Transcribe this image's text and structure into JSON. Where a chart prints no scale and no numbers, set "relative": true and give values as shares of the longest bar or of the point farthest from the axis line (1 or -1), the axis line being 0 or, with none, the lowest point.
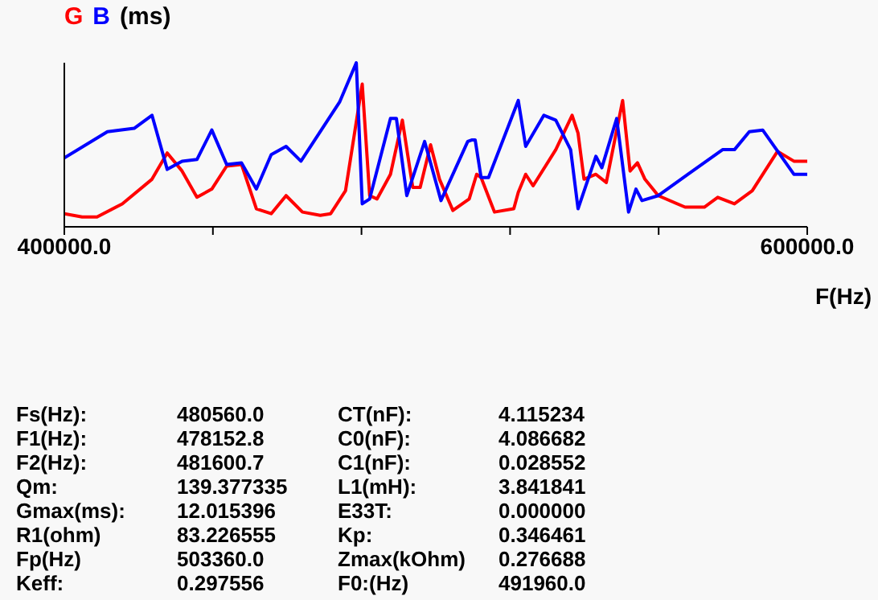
{
  "chart_data": {
    "type": "line",
    "relative": true,
    "xlabel": "F(Hz)",
    "ylabel": "(ms)",
    "legend": "top left",
    "grid": false,
    "marker": "none",
    "line_style": "solid",
    "xlim": [
      400000,
      600000
    ],
    "xticks": [
      {
        "value": 400000,
        "label": "400000.0"
      },
      {
        "value": 440000,
        "label": null
      },
      {
        "value": 480000,
        "label": null
      },
      {
        "value": 520000,
        "label": null
      },
      {
        "value": 560000,
        "label": null
      },
      {
        "value": 600000,
        "label": "600000.0"
      }
    ],
    "series": [
      {
        "name": "G",
        "color": "#ff0000",
        "x": [
          400000,
          404800,
          408800,
          415600,
          423600,
          427700,
          431700,
          435700,
          439700,
          443700,
          447700,
          451700,
          455700,
          459700,
          464100,
          468900,
          471700,
          475700,
          480200,
          482200,
          484200,
          487800,
          491000,
          493800,
          495800,
          498600,
          501000,
          504600,
          509000,
          511000,
          512200,
          515800,
          521000,
          522200,
          524200,
          526200,
          532300,
          536700,
          538300,
          539900,
          543100,
          545900,
          550300,
          552300,
          554300,
          556300,
          559900,
          567100,
          572300,
          575900,
          580400,
          585200,
          592000,
          596400,
          600000
        ],
        "values": [
          0.08,
          0.06,
          0.06,
          0.14,
          0.29,
          0.45,
          0.34,
          0.18,
          0.23,
          0.37,
          0.38,
          0.11,
          0.08,
          0.19,
          0.09,
          0.07,
          0.08,
          0.22,
          0.87,
          0.19,
          0.17,
          0.32,
          0.65,
          0.24,
          0.24,
          0.5,
          0.29,
          0.1,
          0.17,
          0.32,
          0.3,
          0.09,
          0.11,
          0.21,
          0.32,
          0.25,
          0.47,
          0.68,
          0.57,
          0.29,
          0.32,
          0.27,
          0.77,
          0.34,
          0.39,
          0.29,
          0.19,
          0.12,
          0.12,
          0.18,
          0.14,
          0.22,
          0.46,
          0.4,
          0.4
        ]
      },
      {
        "name": "B",
        "color": "#0000ff",
        "x": [
          400000,
          411600,
          418800,
          423600,
          427700,
          431700,
          435700,
          439700,
          443700,
          447700,
          451700,
          455700,
          459700,
          463700,
          474100,
          478600,
          480200,
          482200,
          487800,
          489400,
          492200,
          497000,
          501400,
          508600,
          509800,
          510600,
          512200,
          514200,
          522200,
          524200,
          529100,
          532300,
          536300,
          538300,
          543100,
          544700,
          548700,
          551900,
          553900,
          555500,
          559900,
          567900,
          577200,
          580400,
          584400,
          588000,
          596400,
          600000
        ],
        "values": [
          0.42,
          0.58,
          0.6,
          0.68,
          0.35,
          0.4,
          0.41,
          0.59,
          0.38,
          0.39,
          0.23,
          0.44,
          0.49,
          0.4,
          0.76,
          1,
          0.14,
          0.17,
          0.66,
          0.66,
          0.19,
          0.52,
          0.16,
          0.52,
          0.53,
          0.53,
          0.3,
          0.3,
          0.77,
          0.49,
          0.68,
          0.65,
          0.47,
          0.11,
          0.43,
          0.36,
          0.66,
          0.09,
          0.23,
          0.16,
          0.19,
          0.32,
          0.47,
          0.47,
          0.58,
          0.59,
          0.32,
          0.32
        ]
      }
    ],
    "annotations": [
      "Fs(Hz):",
      "480560.0",
      "CT(nF):",
      "4.115234",
      "F1(Hz):",
      "478152.8",
      "C0(nF):",
      "4.086682",
      "F2(Hz):",
      "481600.7",
      "C1(nF):",
      "0.028552",
      "Qm:",
      "139.377335",
      "L1(mH):",
      "3.841841",
      "Gmax(ms):",
      "12.015396",
      "E33T:",
      "0.000000",
      "R1(ohm)",
      "83.226555",
      "Kp:",
      "0.346461",
      "Fp(Hz)",
      "503360.0",
      "Zmax(kOhm)",
      "0.276688",
      "Keff:",
      "0.297556",
      "F0:(Hz)",
      "491960.0"
    ]
  }
}
